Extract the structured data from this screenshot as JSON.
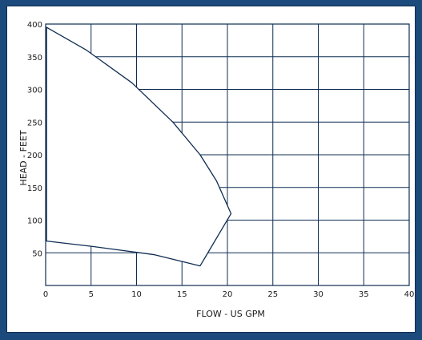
{
  "chart_data": {
    "type": "area",
    "title": "",
    "xlabel": "FLOW - US GPM",
    "ylabel": "HEAD  - FEET",
    "xlim": [
      0,
      40
    ],
    "ylim": [
      0,
      400
    ],
    "grid": true,
    "x_ticks": [
      0,
      5,
      10,
      15,
      20,
      25,
      30,
      35,
      40
    ],
    "y_ticks": [
      50,
      100,
      150,
      200,
      250,
      300,
      350,
      400
    ],
    "series": [
      {
        "points": [
          [
            0.1,
            395
          ],
          [
            4.5,
            360
          ],
          [
            9.5,
            310
          ],
          [
            14,
            250
          ],
          [
            17,
            200
          ],
          [
            18.8,
            160
          ],
          [
            20.4,
            110
          ],
          [
            17,
            30
          ],
          [
            12,
            47
          ],
          [
            5,
            60
          ],
          [
            0.1,
            68
          ]
        ]
      }
    ],
    "colors": {
      "background": "#1d4a7c",
      "panel": "#ffffff",
      "grid": "#0f2d52",
      "curve": "#0f2d52"
    }
  }
}
